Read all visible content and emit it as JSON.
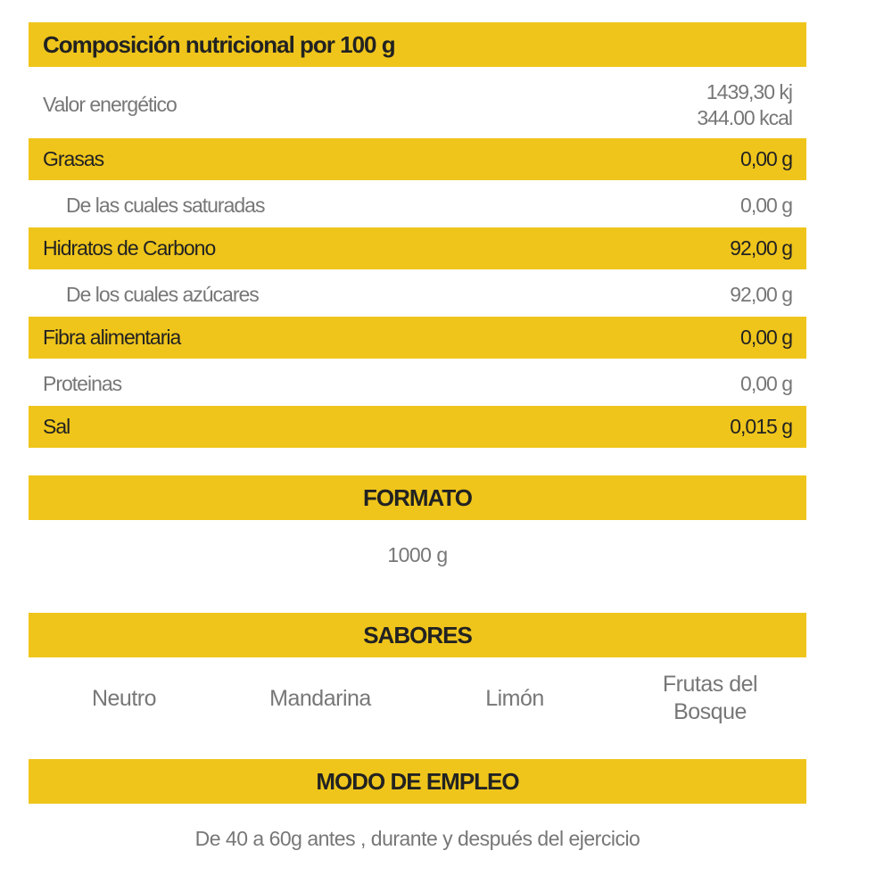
{
  "nutrition": {
    "title": "Composición nutricional por 100 g",
    "rows": [
      {
        "label": "Valor energético",
        "values": [
          "1439,30 kj",
          "344.00 kcal"
        ]
      },
      {
        "label": "Grasas",
        "values": [
          "0,00 g"
        ]
      },
      {
        "label": "De las cuales saturadas",
        "values": [
          "0,00 g"
        ]
      },
      {
        "label": "Hidratos de Carbono",
        "values": [
          "92,00 g"
        ]
      },
      {
        "label": "De los cuales azúcares",
        "values": [
          "92,00 g"
        ]
      },
      {
        "label": "Fibra alimentaria",
        "values": [
          "0,00 g"
        ]
      },
      {
        "label": "Proteinas",
        "values": [
          "0,00 g"
        ]
      },
      {
        "label": "Sal",
        "values": [
          "0,015 g"
        ]
      }
    ]
  },
  "format": {
    "title": "FORMATO",
    "value": "1000 g"
  },
  "flavors": {
    "title": "SABORES",
    "items": [
      "Neutro",
      "Mandarina",
      "Limón",
      "Frutas del Bosque"
    ]
  },
  "usage": {
    "title": "MODO DE EMPLEO",
    "text": "De 40 a 60g antes , durante y después del ejercicio"
  }
}
